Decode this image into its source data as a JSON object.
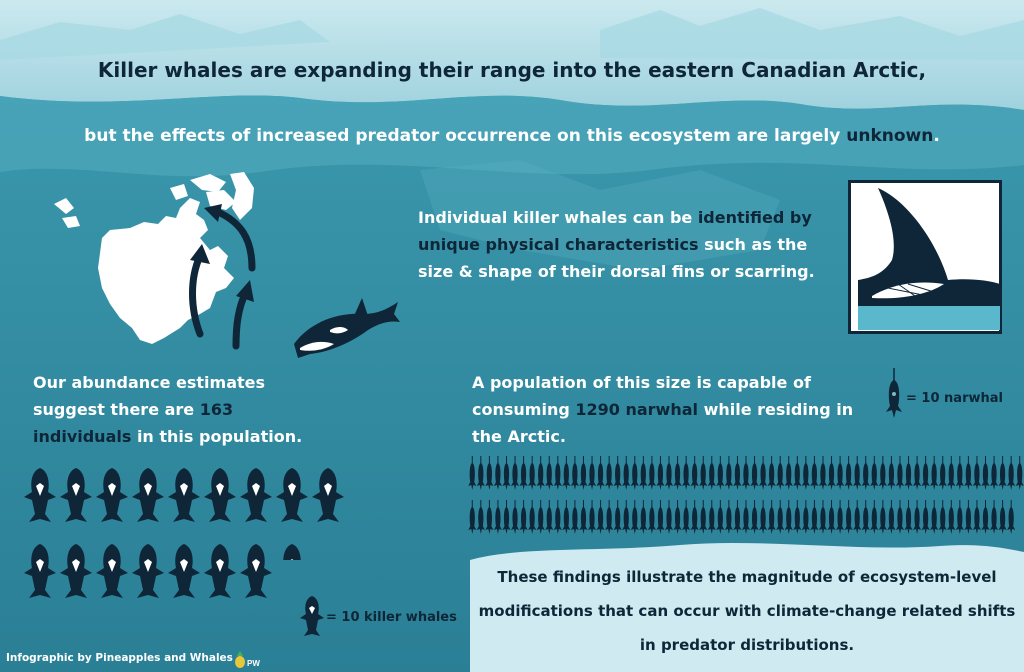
{
  "headline": "Killer whales are expanding their range into the eastern Canadian Arctic,",
  "subline": {
    "before": "but the effects of increased predator occurrence on this ecosystem are largely ",
    "highlight": "unknown",
    "after": "."
  },
  "identification": {
    "part1": "Individual killer whales can be ",
    "highlight1": "identified by",
    "highlight2": "unique physical characteristics",
    "part2": " such as the size & shape of their dorsal fins or scarring."
  },
  "abundance": {
    "part1": "Our abundance estimates suggest there are ",
    "number": "163",
    "number2": "individuals",
    "part2": " in this population."
  },
  "consumption": {
    "part1": "A population of this size is capable of consuming ",
    "highlight": "1290 narwhal",
    "part2": " while residing in the Arctic."
  },
  "legend": {
    "narwhal": "= 10 narwhal",
    "killer_whale": "= 10 killer whales"
  },
  "icon_counts": {
    "killer_whales_full": 16,
    "killer_whales_partial_fraction": 0.3,
    "narwhal": 129
  },
  "findings": "These findings illustrate the magnitude of ecosystem-level modifications that can occur with climate-change related shifts in predator distributions.",
  "credit": "Infographic by Pineapples and Whales",
  "credit_logo_text": "PW",
  "colors": {
    "ocean": "#2f8aa0",
    "dark": "#0e2637",
    "ice": "#bfe3ea",
    "highlight": "#0e2637"
  },
  "icons": [
    "north-america-map-icon",
    "arrow-icon",
    "killer-whale-icon",
    "dorsal-fin-photo-icon",
    "narwhal-icon",
    "pineapple-icon"
  ]
}
